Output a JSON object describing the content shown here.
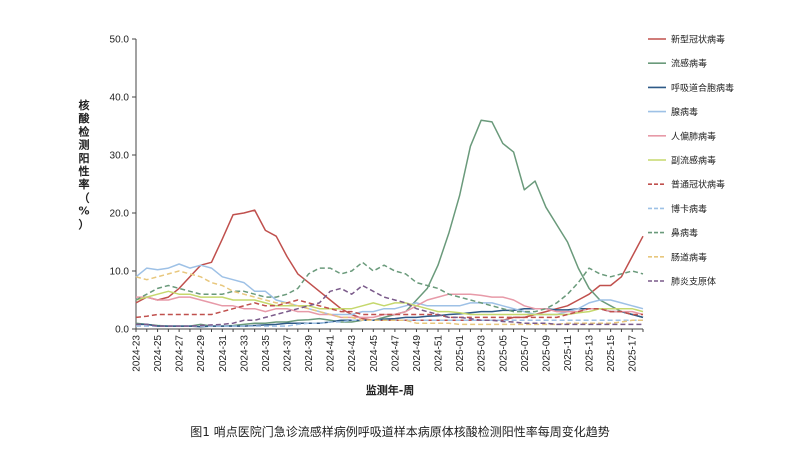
{
  "chart_data": {
    "type": "line",
    "title": "",
    "caption": "图1   哨点医院门急诊流感样病例呼吸道样本病原体核酸检测阳性率每周变化趋势",
    "xlabel": "监测年-周",
    "ylabel": "核酸检测阳性率（%）",
    "ylim": [
      0,
      50
    ],
    "yticks": [
      "0.0",
      "10.0",
      "20.0",
      "30.0",
      "40.0",
      "50.0"
    ],
    "x_tick_labels": [
      "2024-23",
      "2024-25",
      "2024-27",
      "2024-29",
      "2024-31",
      "2024-33",
      "2024-35",
      "2024-37",
      "2024-39",
      "2024-41",
      "2024-43",
      "2024-45",
      "2024-47",
      "2024-49",
      "2024-51",
      "2025-01",
      "2025-03",
      "2025-05",
      "2025-07",
      "2025-09",
      "2025-11",
      "2025-13",
      "2025-15",
      "2025-17"
    ],
    "x": [
      "2024-23",
      "2024-24",
      "2024-25",
      "2024-26",
      "2024-27",
      "2024-28",
      "2024-29",
      "2024-30",
      "2024-31",
      "2024-32",
      "2024-33",
      "2024-34",
      "2024-35",
      "2024-36",
      "2024-37",
      "2024-38",
      "2024-39",
      "2024-40",
      "2024-41",
      "2024-42",
      "2024-43",
      "2024-44",
      "2024-45",
      "2024-46",
      "2024-47",
      "2024-48",
      "2024-49",
      "2024-50",
      "2024-51",
      "2024-52",
      "2025-01",
      "2025-02",
      "2025-03",
      "2025-04",
      "2025-05",
      "2025-06",
      "2025-07",
      "2025-08",
      "2025-09",
      "2025-10",
      "2025-11",
      "2025-12",
      "2025-13",
      "2025-14",
      "2025-15",
      "2025-16",
      "2025-17",
      "2025-18"
    ],
    "legend_position": "right",
    "grid": false,
    "series": [
      {
        "name": "新型冠状病毒",
        "color": "#c0504d",
        "dash": false,
        "values": [
          4.5,
          5.5,
          5.0,
          5.5,
          7.0,
          9.0,
          11.0,
          11.5,
          15.5,
          19.7,
          20.0,
          20.5,
          17.0,
          16.0,
          12.5,
          9.5,
          8.0,
          6.5,
          5.0,
          3.5,
          2.5,
          1.8,
          1.5,
          1.5,
          1.5,
          1.5,
          1.5,
          1.5,
          1.5,
          1.5,
          1.5,
          1.5,
          1.5,
          1.5,
          1.5,
          2.0,
          2.0,
          2.5,
          3.0,
          3.5,
          4.0,
          5.0,
          6.0,
          7.5,
          7.5,
          9.0,
          12.5,
          16.0
        ]
      },
      {
        "name": "流感病毒",
        "color": "#6a9a7b",
        "dash": false,
        "values": [
          1.0,
          0.8,
          0.6,
          0.5,
          0.5,
          0.5,
          0.8,
          0.5,
          0.5,
          0.6,
          0.8,
          1.0,
          1.0,
          1.2,
          1.2,
          1.5,
          1.6,
          1.8,
          1.5,
          1.2,
          1.2,
          1.5,
          1.5,
          2.0,
          2.5,
          3.0,
          5.0,
          7.0,
          11.0,
          16.5,
          23.0,
          31.5,
          36.0,
          35.7,
          32.0,
          30.5,
          24.0,
          25.5,
          21.0,
          18.0,
          15.0,
          10.5,
          7.0,
          5.0,
          4.0,
          3.0,
          2.5,
          2.0
        ]
      },
      {
        "name": "呼吸道合胞病毒",
        "color": "#2e5a87",
        "dash": false,
        "values": [
          0.8,
          0.8,
          0.5,
          0.5,
          0.5,
          0.5,
          0.4,
          0.5,
          0.5,
          0.5,
          0.5,
          0.6,
          0.7,
          0.8,
          1.0,
          1.0,
          1.0,
          1.0,
          1.2,
          1.5,
          1.5,
          1.5,
          1.5,
          1.7,
          1.8,
          2.0,
          2.0,
          2.2,
          2.3,
          2.5,
          2.6,
          2.8,
          3.0,
          3.0,
          3.2,
          3.2,
          3.5,
          3.5,
          3.5,
          3.3,
          3.3,
          3.5,
          3.5,
          3.5,
          3.0,
          3.0,
          2.5,
          2.0
        ]
      },
      {
        "name": "腺病毒",
        "color": "#9ec1e6",
        "dash": false,
        "values": [
          9.0,
          10.5,
          10.2,
          10.5,
          11.2,
          10.5,
          11.0,
          10.5,
          9.0,
          8.5,
          8.0,
          6.5,
          6.5,
          5.0,
          4.5,
          4.0,
          3.5,
          3.0,
          2.5,
          2.5,
          2.5,
          3.0,
          3.0,
          3.5,
          3.5,
          4.0,
          4.5,
          4.0,
          4.0,
          4.0,
          4.0,
          4.5,
          4.5,
          4.5,
          4.0,
          3.5,
          3.0,
          2.5,
          2.5,
          2.5,
          3.0,
          3.5,
          4.5,
          5.0,
          5.0,
          4.5,
          4.0,
          3.5
        ]
      },
      {
        "name": "人偏肺病毒",
        "color": "#e79aa8",
        "dash": false,
        "values": [
          5.5,
          5.5,
          5.0,
          5.0,
          5.5,
          5.5,
          5.0,
          4.5,
          4.0,
          4.0,
          3.5,
          3.5,
          3.0,
          3.5,
          3.5,
          3.0,
          3.0,
          2.5,
          2.5,
          2.0,
          2.0,
          2.0,
          2.0,
          2.5,
          2.5,
          3.0,
          4.0,
          5.0,
          5.5,
          6.0,
          6.0,
          6.0,
          5.8,
          5.5,
          5.5,
          5.0,
          4.0,
          3.5,
          3.5,
          3.0,
          3.0,
          3.0,
          3.5,
          3.5,
          3.0,
          3.0,
          3.0,
          2.5
        ]
      },
      {
        "name": "副流感病毒",
        "color": "#c5d86d",
        "dash": false,
        "values": [
          5.0,
          5.5,
          6.0,
          6.5,
          6.0,
          6.0,
          5.5,
          5.5,
          5.5,
          5.0,
          5.0,
          5.0,
          4.5,
          4.0,
          4.0,
          4.0,
          4.0,
          3.5,
          3.5,
          3.5,
          3.5,
          4.0,
          4.5,
          4.0,
          4.5,
          4.5,
          4.0,
          3.5,
          3.0,
          3.0,
          2.8,
          2.5,
          2.5,
          2.5,
          2.5,
          2.5,
          2.5,
          2.5,
          2.5,
          2.5,
          2.5,
          2.8,
          3.0,
          3.5,
          3.5,
          3.5,
          3.5,
          3.0
        ]
      },
      {
        "name": "普通冠状病毒",
        "color": "#c0504d",
        "dash": true,
        "values": [
          2.0,
          2.2,
          2.5,
          2.5,
          2.5,
          2.5,
          2.5,
          2.5,
          3.0,
          3.5,
          4.0,
          4.5,
          4.0,
          4.0,
          4.5,
          5.0,
          4.5,
          4.0,
          3.5,
          3.0,
          3.0,
          2.5,
          2.5,
          2.5,
          2.5,
          2.5,
          2.5,
          2.5,
          2.5,
          2.0,
          2.0,
          2.0,
          2.0,
          2.0,
          2.0,
          2.0,
          2.0,
          2.0,
          2.0,
          2.0,
          2.5,
          3.0,
          3.5,
          3.5,
          3.0,
          3.0,
          2.5,
          2.5
        ]
      },
      {
        "name": "博卡病毒",
        "color": "#9ec1e6",
        "dash": true,
        "values": [
          0.5,
          0.5,
          0.5,
          0.5,
          0.5,
          0.5,
          0.5,
          0.5,
          0.5,
          0.5,
          0.5,
          0.5,
          0.5,
          0.5,
          0.5,
          0.8,
          1.0,
          1.0,
          1.2,
          1.2,
          1.5,
          1.5,
          1.5,
          1.5,
          1.5,
          1.5,
          1.5,
          1.5,
          1.5,
          1.5,
          1.5,
          1.5,
          1.5,
          1.5,
          1.5,
          1.5,
          1.5,
          1.5,
          1.5,
          1.5,
          1.5,
          1.5,
          1.5,
          1.5,
          1.5,
          1.5,
          1.5,
          1.5
        ]
      },
      {
        "name": "鼻病毒",
        "color": "#6a9a7b",
        "dash": true,
        "values": [
          5.0,
          6.0,
          7.0,
          7.5,
          7.0,
          6.5,
          6.0,
          6.0,
          6.0,
          6.5,
          6.5,
          6.0,
          5.5,
          5.5,
          6.0,
          7.0,
          9.5,
          10.5,
          10.5,
          9.5,
          10.0,
          11.5,
          10.0,
          11.0,
          10.0,
          9.5,
          8.0,
          7.5,
          7.0,
          6.0,
          5.5,
          5.0,
          4.5,
          4.0,
          3.5,
          3.0,
          3.0,
          3.0,
          3.5,
          4.5,
          6.0,
          8.0,
          10.5,
          9.5,
          9.0,
          9.5,
          10.0,
          9.5
        ]
      },
      {
        "name": "肠道病毒",
        "color": "#e8c77d",
        "dash": true,
        "values": [
          9.0,
          8.5,
          9.0,
          9.5,
          10.0,
          9.5,
          9.0,
          8.0,
          7.5,
          6.5,
          6.0,
          5.5,
          5.0,
          4.5,
          4.5,
          4.0,
          3.5,
          3.0,
          2.5,
          2.0,
          2.0,
          1.5,
          1.5,
          1.5,
          1.5,
          1.5,
          1.0,
          1.0,
          1.0,
          1.0,
          0.8,
          0.8,
          0.8,
          0.8,
          0.8,
          0.8,
          0.8,
          0.8,
          0.8,
          0.8,
          1.0,
          1.0,
          1.0,
          1.0,
          1.0,
          1.2,
          1.5,
          1.5
        ]
      },
      {
        "name": "肺炎支原体",
        "color": "#7a5a8a",
        "dash": true,
        "values": [
          0.8,
          0.8,
          0.5,
          0.5,
          0.5,
          0.5,
          0.6,
          0.7,
          0.8,
          1.0,
          1.5,
          1.5,
          2.0,
          2.5,
          3.0,
          3.5,
          4.0,
          4.5,
          6.5,
          7.0,
          6.0,
          7.5,
          6.5,
          5.5,
          5.0,
          4.5,
          3.5,
          3.0,
          2.5,
          2.0,
          2.0,
          1.8,
          1.5,
          1.5,
          1.3,
          1.2,
          1.0,
          1.0,
          1.0,
          0.8,
          0.8,
          0.8,
          0.8,
          0.8,
          0.8,
          0.8,
          0.8,
          0.8
        ]
      }
    ]
  }
}
